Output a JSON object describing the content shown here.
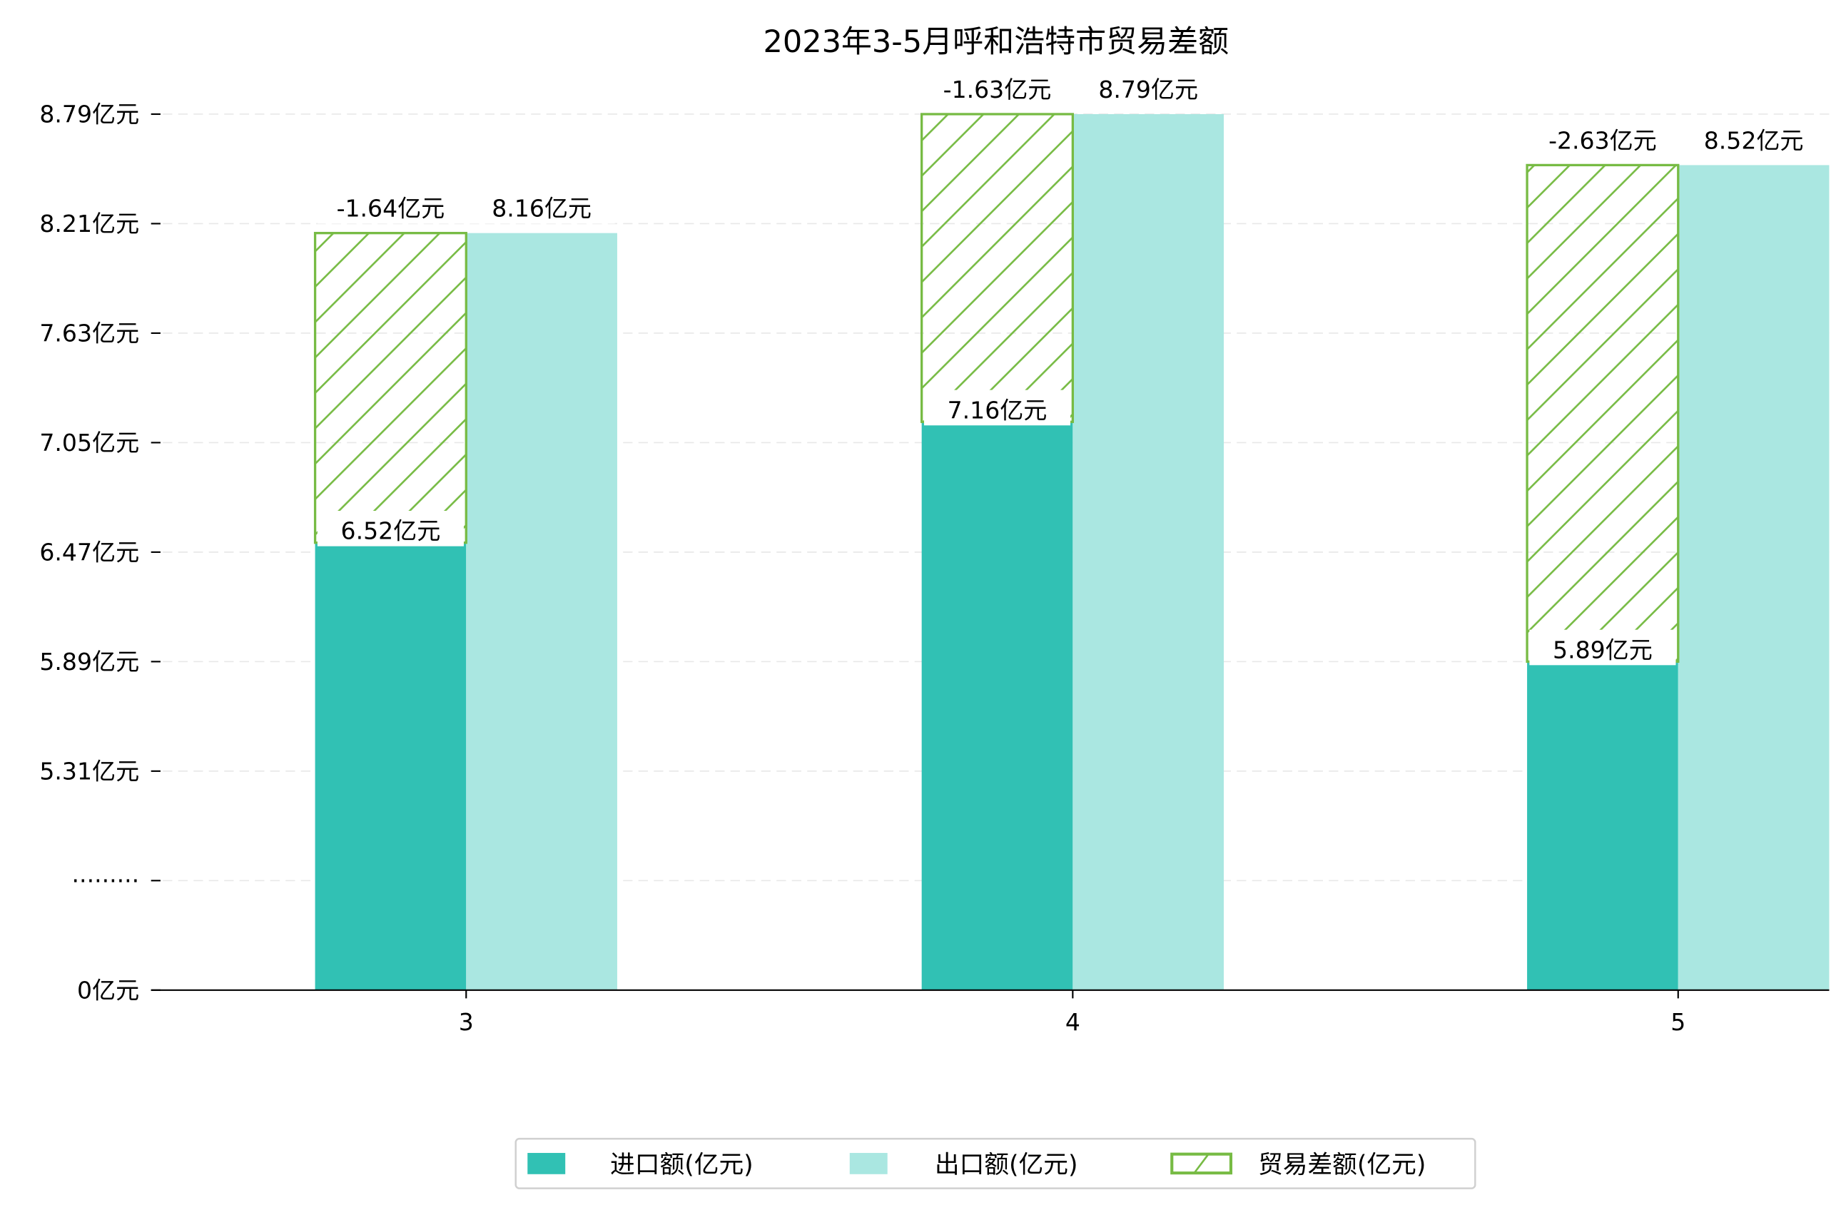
{
  "chart_data": {
    "type": "bar",
    "title": "2023年3-5月呼和浩特市贸易差额",
    "xlabel": "",
    "ylabel": "",
    "categories": [
      "3",
      "4",
      "5"
    ],
    "unit": "亿元",
    "series": [
      {
        "name": "进口额(亿元)",
        "values": [
          6.52,
          7.16,
          5.89
        ],
        "color": "#31c1b4",
        "labels": [
          "6.52亿元",
          "7.16亿元",
          "5.89亿元"
        ]
      },
      {
        "name": "出口额(亿元)",
        "values": [
          8.16,
          8.79,
          8.52
        ],
        "color": "#aae7e1",
        "labels": [
          "8.16亿元",
          "8.79亿元",
          "8.52亿元"
        ]
      },
      {
        "name": "贸易差额(亿元)",
        "values": [
          -1.64,
          -1.63,
          -2.63
        ],
        "color": "#77bb44",
        "labels": [
          "-1.64亿元",
          "-1.63亿元",
          "-2.63亿元"
        ],
        "style": "hatched"
      }
    ],
    "yticks": [
      "0亿元",
      "·········",
      "5.31亿元",
      "5.89亿元",
      "6.47亿元",
      "7.05亿元",
      "7.63亿元",
      "8.21亿元",
      "8.79亿元"
    ],
    "ytick_values": [
      0,
      null,
      5.31,
      5.89,
      6.47,
      7.05,
      7.63,
      8.21,
      8.79
    ],
    "axis_break": true,
    "ylim": [
      5.31,
      8.79
    ],
    "grid": true,
    "legend": "bottom-center"
  }
}
